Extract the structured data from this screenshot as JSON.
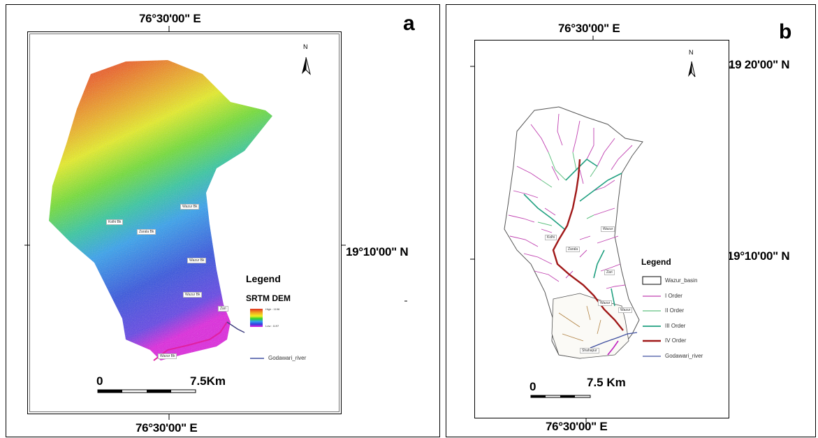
{
  "panel_a": {
    "letter": "a",
    "top_coord": "76°30'00\" E",
    "bottom_coord": "76°30'00\" E",
    "right_coord": "19°10'00\" N",
    "north": "N",
    "legend": {
      "title": "Legend",
      "subtitle": "SRTM DEM",
      "high_label": "High : 1198",
      "low_label": "Low : 1197",
      "river_label": "Godawari_river",
      "ramp_colors": [
        "#e03020",
        "#f0a020",
        "#f0f020",
        "#30d030",
        "#30a0f0",
        "#3040e0",
        "#e020e0"
      ]
    },
    "scale": {
      "start": "0",
      "end": "7.5Km"
    },
    "places": [
      "Wazur Bk",
      "Kolhi Bk",
      "Zarala Bk",
      "Wazur Bk",
      "Wazur Bk",
      "Zari",
      "Wazur Bk"
    ]
  },
  "panel_b": {
    "letter": "b",
    "top_coord": "76°30'00\" E",
    "bottom_coord": "76°30'00\" E",
    "right_coord_top": "19 20'00\" N",
    "right_coord_mid": "19°10'00\" N",
    "north": "N",
    "legend": {
      "title": "Legend",
      "items": [
        {
          "label": "Wazur_basin",
          "kind": "box",
          "color": "#000000"
        },
        {
          "label": "I Order",
          "kind": "line",
          "color": "#c040b0"
        },
        {
          "label": "II Order",
          "kind": "line",
          "color": "#60c080"
        },
        {
          "label": "III Order",
          "kind": "line",
          "color": "#20a080"
        },
        {
          "label": "IV Order",
          "kind": "line",
          "color": "#a01818"
        },
        {
          "label": "Godawari_river",
          "kind": "line",
          "color": "#4050a0"
        }
      ]
    },
    "scale": {
      "start": "0",
      "end": "7.5 Km"
    },
    "places": [
      "Kolhi",
      "Zarala",
      "Wazur",
      "Zari",
      "Wazur",
      "Shahapur",
      "Wazur"
    ]
  }
}
